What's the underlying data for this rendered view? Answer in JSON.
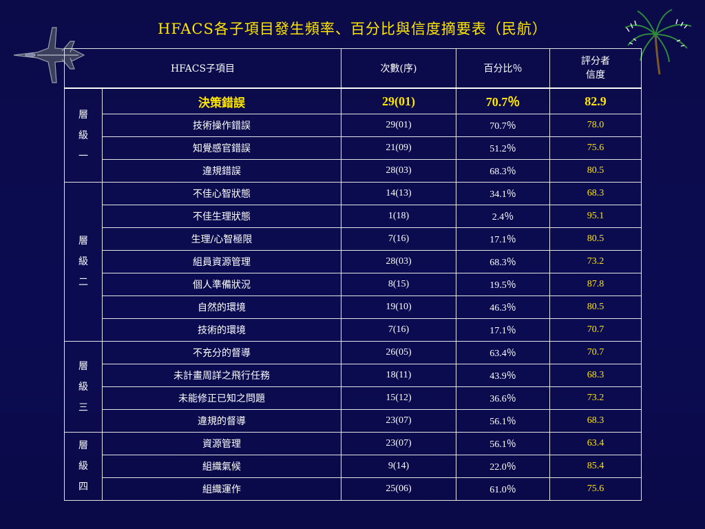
{
  "title": "HFACS各子項目發生頻率、百分比與信度摘要表（民航）",
  "colors": {
    "background": "#0b0b4a",
    "title": "#ffe600",
    "text": "#ffffff",
    "score": "#ffe600",
    "border": "#e6e6e6"
  },
  "decorations": {
    "left": "fighter-jet-icon",
    "right": "palm-tree-icon"
  },
  "table": {
    "headers": {
      "item": "HFACS子項目",
      "count": "次數(序)",
      "percent": "百分比％",
      "rater_line1": "評分者",
      "rater_line2": "信度"
    },
    "groups": [
      {
        "label_chars": [
          "層",
          "級",
          "一"
        ],
        "rows": [
          {
            "item": "決策錯誤",
            "count": "29(01)",
            "percent": "70.7％",
            "reliability": "82.9",
            "highlight": true
          },
          {
            "item": "技術操作錯誤",
            "count": "29(01)",
            "percent": "70.7％",
            "reliability": "78.0"
          },
          {
            "item": "知覺感官錯誤",
            "count": "21(09)",
            "percent": "51.2％",
            "reliability": "75.6"
          },
          {
            "item": "違規錯誤",
            "count": "28(03)",
            "percent": "68.3％",
            "reliability": "80.5"
          }
        ]
      },
      {
        "label_chars": [
          "層",
          "級",
          "二"
        ],
        "rows": [
          {
            "item": "不佳心智狀態",
            "count": "14(13)",
            "percent": "34.1％",
            "reliability": "68.3"
          },
          {
            "item": "不佳生理狀態",
            "count": "1(18)",
            "percent": "2.4％",
            "reliability": "95.1"
          },
          {
            "item": "生理/心智極限",
            "count": "7(16)",
            "percent": "17.1％",
            "reliability": "80.5"
          },
          {
            "item": "組員資源管理",
            "count": "28(03)",
            "percent": "68.3％",
            "reliability": "73.2"
          },
          {
            "item": "個人準備狀況",
            "count": "8(15)",
            "percent": "19.5％",
            "reliability": "87.8"
          },
          {
            "item": "自然的環境",
            "count": "19(10)",
            "percent": "46.3％",
            "reliability": "80.5"
          },
          {
            "item": "技術的環境",
            "count": "7(16)",
            "percent": "17.1％",
            "reliability": "70.7"
          }
        ]
      },
      {
        "label_chars": [
          "層",
          "級",
          "三"
        ],
        "rows": [
          {
            "item": "不充分的督導",
            "count": "26(05)",
            "percent": "63.4％",
            "reliability": "70.7"
          },
          {
            "item": "未計畫周詳之飛行任務",
            "count": "18(11)",
            "percent": "43.9％",
            "reliability": "68.3"
          },
          {
            "item": "未能修正已知之問題",
            "count": "15(12)",
            "percent": "36.6％",
            "reliability": "73.2"
          },
          {
            "item": "違規的督導",
            "count": "23(07)",
            "percent": "56.1％",
            "reliability": "68.3"
          }
        ]
      },
      {
        "label_chars": [
          "層",
          "級",
          "四"
        ],
        "rows": [
          {
            "item": "資源管理",
            "count": "23(07)",
            "percent": "56.1％",
            "reliability": "63.4"
          },
          {
            "item": "組織氣候",
            "count": "9(14)",
            "percent": "22.0％",
            "reliability": "85.4"
          },
          {
            "item": "組織運作",
            "count": "25(06)",
            "percent": "61.0％",
            "reliability": "75.6"
          }
        ]
      }
    ]
  }
}
